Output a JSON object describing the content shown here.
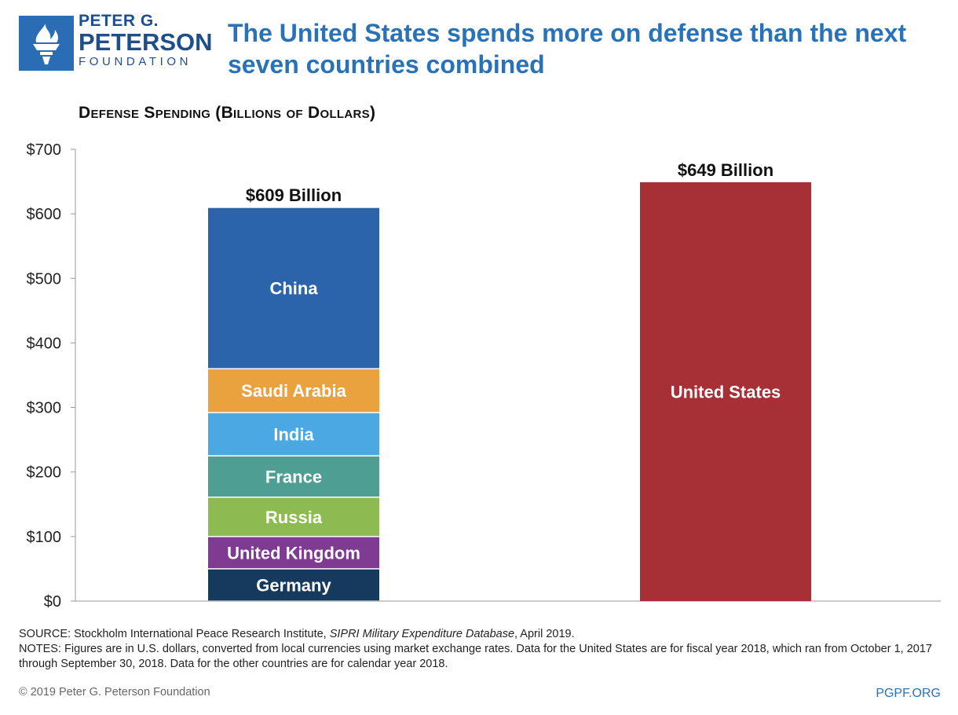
{
  "header": {
    "logo_line1": "PETER G.",
    "logo_line2": "PETERSON",
    "logo_line3": "FOUNDATION",
    "headline": "The United States spends more on defense than the next seven countries combined"
  },
  "chart_data": {
    "type": "bar",
    "stacked": true,
    "title": "Defense Spending (Billions of Dollars)",
    "ylim": [
      0,
      700
    ],
    "yticks": [
      0,
      100,
      200,
      300,
      400,
      500,
      600,
      700
    ],
    "ytick_labels": [
      "$0",
      "$100",
      "$200",
      "$300",
      "$400",
      "$500",
      "$600",
      "$700"
    ],
    "grid": false,
    "bars": [
      {
        "total_label": "$609 Billion",
        "segments": [
          {
            "name": "Germany",
            "value": 50,
            "color": "#163a5e"
          },
          {
            "name": "United Kingdom",
            "value": 50,
            "color": "#7e3b91"
          },
          {
            "name": "Russia",
            "value": 61,
            "color": "#8dba51"
          },
          {
            "name": "France",
            "value": 64,
            "color": "#4e9e94"
          },
          {
            "name": "India",
            "value": 67,
            "color": "#4ba8e2"
          },
          {
            "name": "Saudi Arabia",
            "value": 68,
            "color": "#eaa23f"
          },
          {
            "name": "China",
            "value": 250,
            "color": "#2b64ab"
          }
        ]
      },
      {
        "total_label": "$649 Billion",
        "segments": [
          {
            "name": "United States",
            "value": 649,
            "color": "#a63035"
          }
        ]
      }
    ]
  },
  "footer": {
    "source_prefix": "SOURCE: Stockholm International Peace Research Institute, ",
    "source_italic": "SIPRI Military Expenditure Database",
    "source_suffix": ", April 2019.",
    "notes": "NOTES: Figures are in U.S. dollars, converted from local currencies using market exchange rates. Data for the United States are for fiscal year 2018, which ran from October 1, 2017 through September 30, 2018. Data for the other countries are for calendar year 2018.",
    "copyright": "© 2019 Peter G. Peterson Foundation",
    "site": "PGPF.ORG"
  }
}
